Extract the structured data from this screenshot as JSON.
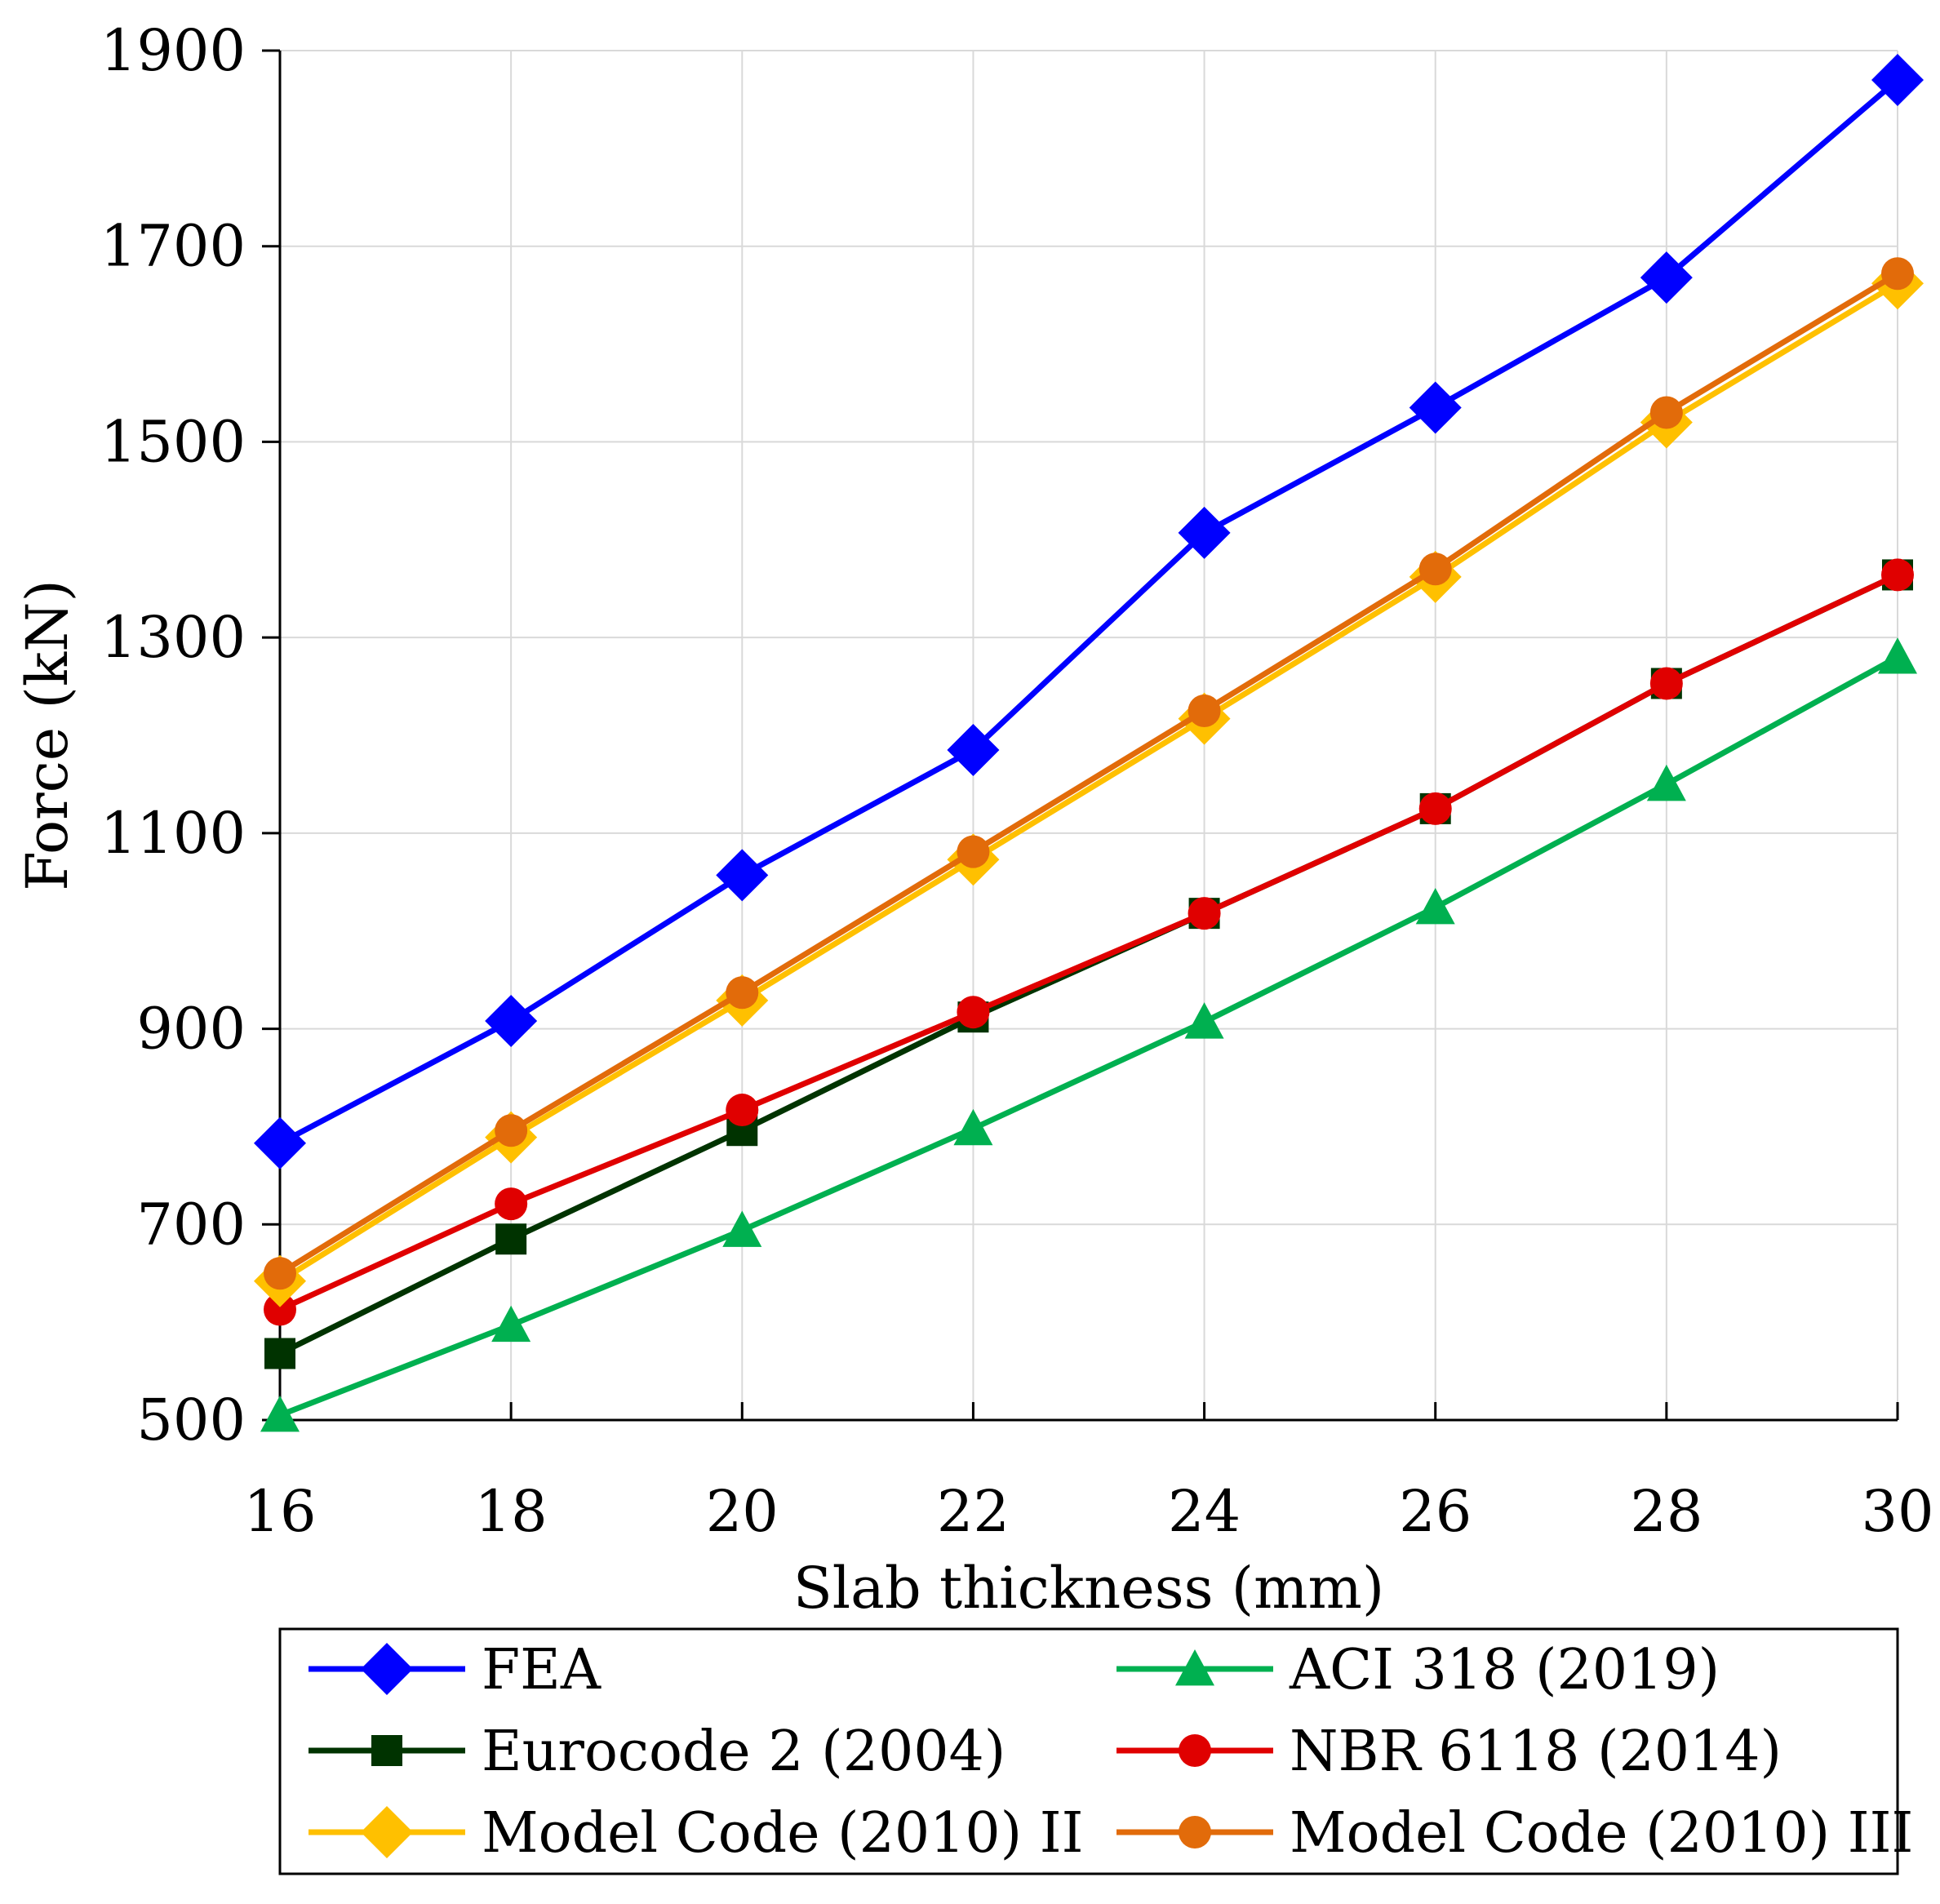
{
  "chart_data": {
    "type": "line",
    "title": "",
    "xlabel": "Slab thickness (mm)",
    "ylabel": "Force (kN)",
    "x": [
      16,
      18,
      20,
      22,
      24,
      26,
      28,
      30
    ],
    "xlim": [
      16,
      30
    ],
    "ylim": [
      500,
      1900
    ],
    "xticks": [
      "16",
      "18",
      "20",
      "22",
      "24",
      "26",
      "28",
      "30"
    ],
    "yticks": [
      "500",
      "700",
      "900",
      "1100",
      "1300",
      "1500",
      "1700",
      "1900"
    ],
    "grid": true,
    "legend_position": "bottom",
    "series": [
      {
        "name": "FEA",
        "marker": "diamond",
        "color": "#0000ff",
        "values": [
          783,
          908,
          1057,
          1185,
          1407,
          1535,
          1668,
          1870
        ]
      },
      {
        "name": "ACI 318 (2019)",
        "marker": "triangle",
        "color": "#00b050",
        "values": [
          505,
          597,
          694,
          798,
          907,
          1024,
          1150,
          1280
        ]
      },
      {
        "name": "Eurocode 2 (2004)",
        "marker": "square",
        "color": "#003300",
        "values": [
          568,
          685,
          796,
          912,
          1018,
          1125,
          1253,
          1364
        ]
      },
      {
        "name": "NBR 6118 (2014)",
        "marker": "circle",
        "color": "#e00000",
        "values": [
          613,
          721,
          817,
          917,
          1018,
          1125,
          1253,
          1364
        ]
      },
      {
        "name": "Model Code (2010) II",
        "marker": "diamond",
        "color": "#ffc000",
        "values": [
          642,
          789,
          929,
          1073,
          1217,
          1362,
          1520,
          1662
        ]
      },
      {
        "name": "Model Code (2010) III",
        "marker": "circle",
        "color": "#e26b0a",
        "values": [
          650,
          796,
          937,
          1081,
          1225,
          1370,
          1530,
          1672
        ]
      }
    ]
  }
}
